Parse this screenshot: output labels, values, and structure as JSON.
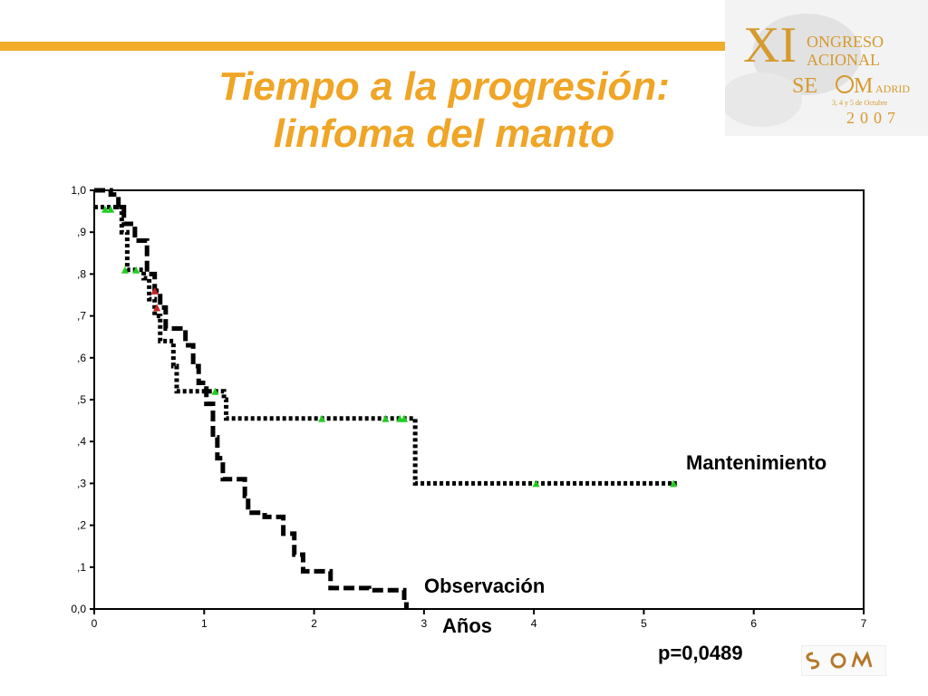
{
  "slide": {
    "title_line1": "Tiempo a la progresión:",
    "title_line2": "linfoma del manto",
    "accent_color": "#f0ac2a",
    "title_color": "#f0a526"
  },
  "logo": {
    "roman": "XI",
    "line1": "ONGRESO",
    "line2": "ACIONAL",
    "brand": "SE",
    "brand_tail": "M",
    "city": "ADRID",
    "dates": "3, 4 y 5 de Octubre",
    "year": "2007"
  },
  "footer": {
    "pvalue": "p=0,0489"
  },
  "chart_data": {
    "type": "line",
    "subtype": "kaplan-meier",
    "title": "",
    "xlabel": "Años",
    "ylabel": "",
    "xlim": [
      0,
      7
    ],
    "ylim": [
      0,
      1
    ],
    "x_ticks": [
      "0",
      "1",
      "2",
      "3",
      "4",
      "5",
      "6",
      "7"
    ],
    "y_ticks": [
      "0,0",
      ",1",
      ",2",
      ",3",
      ",4",
      ",5",
      ",6",
      ",7",
      ",8",
      ",9",
      "1,0"
    ],
    "grid": false,
    "series": [
      {
        "name": "Mantenimiento",
        "style": "dotted",
        "censor_color": "#22cc22",
        "x": [
          0,
          0.22,
          0.25,
          0.3,
          0.4,
          0.45,
          0.5,
          0.55,
          0.6,
          0.68,
          0.72,
          0.75,
          0.8,
          1.0,
          1.1,
          1.18,
          1.2,
          2.5,
          2.8,
          2.92,
          5.3
        ],
        "y": [
          0.96,
          0.96,
          0.9,
          0.81,
          0.81,
          0.79,
          0.74,
          0.7,
          0.64,
          0.64,
          0.58,
          0.52,
          0.52,
          0.52,
          0.52,
          0.5,
          0.455,
          0.455,
          0.455,
          0.3,
          0.3
        ],
        "censored": [
          [
            0.1,
            0.955
          ],
          [
            0.15,
            0.955
          ],
          [
            0.28,
            0.81
          ],
          [
            0.38,
            0.81
          ],
          [
            1.1,
            0.52
          ],
          [
            2.07,
            0.455
          ],
          [
            2.65,
            0.455
          ],
          [
            2.78,
            0.455
          ],
          [
            2.82,
            0.455
          ],
          [
            4.02,
            0.3
          ],
          [
            5.27,
            0.3
          ]
        ]
      },
      {
        "name": "Observación",
        "style": "dashed",
        "censor_color": "#cc2222",
        "x": [
          0,
          0.07,
          0.15,
          0.22,
          0.27,
          0.37,
          0.48,
          0.55,
          0.6,
          0.65,
          0.83,
          0.9,
          0.95,
          1.02,
          1.08,
          1.12,
          1.17,
          1.37,
          1.4,
          1.55,
          1.72,
          1.82,
          1.9,
          2.15,
          2.5,
          2.82,
          2.84
        ],
        "y": [
          1.0,
          1.0,
          0.99,
          0.96,
          0.92,
          0.88,
          0.8,
          0.76,
          0.72,
          0.67,
          0.63,
          0.58,
          0.54,
          0.49,
          0.41,
          0.36,
          0.31,
          0.27,
          0.23,
          0.22,
          0.18,
          0.13,
          0.09,
          0.05,
          0.045,
          0.02,
          0.0
        ],
        "censored": [
          [
            0.55,
            0.76
          ],
          [
            0.57,
            0.72
          ]
        ]
      }
    ]
  }
}
